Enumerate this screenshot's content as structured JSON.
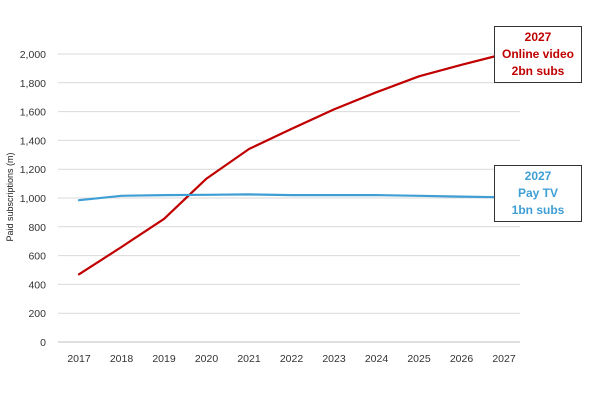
{
  "chart_data": {
    "type": "line",
    "x": [
      "2017",
      "2018",
      "2019",
      "2020",
      "2021",
      "2022",
      "2023",
      "2024",
      "2025",
      "2026",
      "2027"
    ],
    "series": [
      {
        "name": "Online video",
        "color": "#c00000",
        "values": [
          470,
          660,
          855,
          1135,
          1340,
          1480,
          1615,
          1735,
          1845,
          1925,
          2000
        ]
      },
      {
        "name": "Pay TV",
        "color": "#3f9fd5",
        "values": [
          985,
          1015,
          1020,
          1022,
          1025,
          1020,
          1020,
          1020,
          1015,
          1010,
          1005
        ]
      }
    ],
    "ylabel": "Paid subscriptions (m)",
    "ylim": [
      0,
      2000
    ],
    "yticks": [
      "0",
      "200",
      "400",
      "600",
      "800",
      "1,000",
      "1,200",
      "1,400",
      "1,600",
      "1,800",
      "2,000"
    ],
    "grid": true,
    "annotations": [
      {
        "series": "Online video",
        "color": "#c00000",
        "lines": [
          "2027",
          "Online video",
          "2bn subs"
        ]
      },
      {
        "series": "Pay TV",
        "color": "#3f9fd5",
        "lines": [
          "2027",
          "Pay TV",
          "1bn subs"
        ]
      }
    ]
  }
}
